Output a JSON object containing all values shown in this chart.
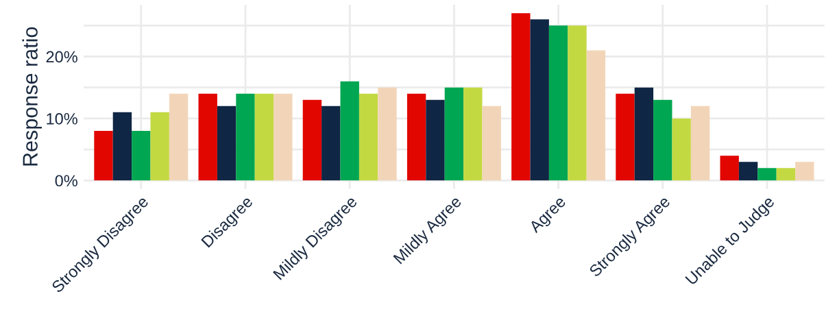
{
  "chart_data": {
    "type": "bar",
    "ylabel": "Response ratio",
    "categories": [
      "Strongly Disagree",
      "Disagree",
      "Mildly Disagree",
      "Mildly Agree",
      "Agree",
      "Strongly Agree",
      "Unable to Judge"
    ],
    "series": [
      {
        "color": "#e10600",
        "values": [
          8,
          14,
          13,
          14,
          27,
          14,
          4
        ]
      },
      {
        "color": "#0f2644",
        "values": [
          11,
          12,
          12,
          13,
          26,
          15,
          3
        ]
      },
      {
        "color": "#00a651",
        "values": [
          8,
          14,
          16,
          15,
          25,
          13,
          2
        ]
      },
      {
        "color": "#c3d942",
        "values": [
          11,
          14,
          14,
          15,
          25,
          10,
          2
        ]
      },
      {
        "color": "#f2d5b8",
        "values": [
          14,
          14,
          15,
          12,
          21,
          12,
          3
        ]
      }
    ],
    "ylim": [
      -1.35,
      28.35
    ],
    "yticks": [
      {
        "value": 0,
        "label": "0%"
      },
      {
        "value": 5,
        "label": null
      },
      {
        "value": 10,
        "label": "10%"
      },
      {
        "value": 15,
        "label": null
      },
      {
        "value": 20,
        "label": "20%"
      },
      {
        "value": 25,
        "label": null
      }
    ],
    "grid": true,
    "legend": false
  }
}
